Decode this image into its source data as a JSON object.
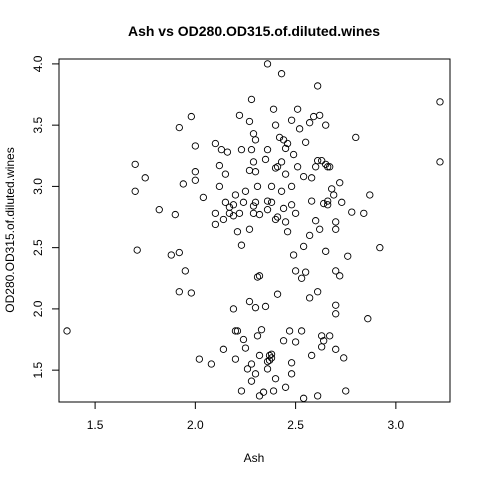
{
  "chart_data": {
    "type": "scatter",
    "title": "Ash vs OD280.OD315.of.diluted.wines",
    "xlabel": "Ash",
    "ylabel": "OD280.OD315.of.diluted.wines",
    "xlim": [
      1.32,
      3.27
    ],
    "ylim": [
      1.24,
      4.04
    ],
    "xticks": [
      1.5,
      2.0,
      2.5,
      3.0
    ],
    "xtick_labels": [
      "1.5",
      "2.0",
      "2.5",
      "3.0"
    ],
    "yticks": [
      1.5,
      2.0,
      2.5,
      3.0,
      3.5,
      4.0
    ],
    "ytick_labels": [
      "1.5",
      "2.0",
      "2.5",
      "3.0",
      "3.5",
      "4.0"
    ],
    "grid": false,
    "marker": "open-circle",
    "points": [
      [
        1.36,
        1.82
      ],
      [
        1.7,
        3.18
      ],
      [
        1.7,
        2.96
      ],
      [
        1.71,
        2.48
      ],
      [
        1.75,
        3.07
      ],
      [
        1.82,
        2.81
      ],
      [
        1.88,
        2.44
      ],
      [
        1.9,
        2.77
      ],
      [
        1.92,
        3.48
      ],
      [
        1.92,
        2.14
      ],
      [
        1.92,
        2.46
      ],
      [
        1.94,
        3.02
      ],
      [
        1.95,
        2.31
      ],
      [
        1.98,
        3.57
      ],
      [
        1.98,
        2.13
      ],
      [
        2.0,
        3.33
      ],
      [
        2.0,
        3.12
      ],
      [
        2.0,
        3.05
      ],
      [
        2.02,
        1.59
      ],
      [
        2.04,
        2.91
      ],
      [
        2.08,
        1.55
      ],
      [
        2.1,
        3.35
      ],
      [
        2.1,
        2.78
      ],
      [
        2.1,
        2.69
      ],
      [
        2.12,
        3.17
      ],
      [
        2.12,
        3.0
      ],
      [
        2.13,
        3.3
      ],
      [
        2.14,
        2.73
      ],
      [
        2.14,
        1.67
      ],
      [
        2.15,
        3.1
      ],
      [
        2.15,
        2.87
      ],
      [
        2.16,
        3.28
      ],
      [
        2.17,
        2.78
      ],
      [
        2.17,
        2.83
      ],
      [
        2.19,
        2.85
      ],
      [
        2.19,
        2.76
      ],
      [
        2.19,
        2.0
      ],
      [
        2.2,
        1.82
      ],
      [
        2.2,
        1.59
      ],
      [
        2.2,
        2.93
      ],
      [
        2.21,
        1.82
      ],
      [
        2.21,
        2.63
      ],
      [
        2.22,
        2.78
      ],
      [
        2.22,
        3.58
      ],
      [
        2.23,
        3.3
      ],
      [
        2.23,
        2.52
      ],
      [
        2.23,
        1.33
      ],
      [
        2.24,
        2.87
      ],
      [
        2.24,
        1.75
      ],
      [
        2.25,
        2.96
      ],
      [
        2.25,
        1.68
      ],
      [
        2.26,
        1.51
      ],
      [
        2.27,
        3.53
      ],
      [
        2.27,
        3.13
      ],
      [
        2.27,
        2.65
      ],
      [
        2.27,
        2.06
      ],
      [
        2.28,
        3.71
      ],
      [
        2.28,
        3.3
      ],
      [
        2.28,
        1.55
      ],
      [
        2.28,
        1.41
      ],
      [
        2.29,
        3.43
      ],
      [
        2.29,
        3.2
      ],
      [
        2.29,
        2.78
      ],
      [
        2.29,
        2.84
      ],
      [
        2.3,
        3.38
      ],
      [
        2.3,
        3.12
      ],
      [
        2.3,
        2.87
      ],
      [
        2.3,
        2.01
      ],
      [
        2.3,
        1.47
      ],
      [
        2.31,
        3.0
      ],
      [
        2.31,
        2.26
      ],
      [
        2.31,
        1.78
      ],
      [
        2.32,
        2.77
      ],
      [
        2.32,
        2.27
      ],
      [
        2.32,
        1.62
      ],
      [
        2.32,
        1.29
      ],
      [
        2.33,
        1.83
      ],
      [
        2.34,
        1.32
      ],
      [
        2.35,
        3.22
      ],
      [
        2.35,
        2.02
      ],
      [
        2.36,
        4.0
      ],
      [
        2.36,
        3.3
      ],
      [
        2.36,
        2.88
      ],
      [
        2.36,
        2.81
      ],
      [
        2.36,
        1.57
      ],
      [
        2.36,
        1.51
      ],
      [
        2.37,
        1.62
      ],
      [
        2.37,
        1.58
      ],
      [
        2.38,
        3.0
      ],
      [
        2.38,
        2.87
      ],
      [
        2.38,
        1.63
      ],
      [
        2.38,
        1.6
      ],
      [
        2.39,
        3.63
      ],
      [
        2.39,
        1.33
      ],
      [
        2.4,
        3.15
      ],
      [
        2.4,
        3.5
      ],
      [
        2.4,
        2.73
      ],
      [
        2.4,
        1.43
      ],
      [
        2.41,
        2.75
      ],
      [
        2.41,
        3.16
      ],
      [
        2.41,
        2.12
      ],
      [
        2.42,
        3.4
      ],
      [
        2.43,
        3.92
      ],
      [
        2.43,
        3.2
      ],
      [
        2.43,
        2.96
      ],
      [
        2.44,
        3.38
      ],
      [
        2.44,
        2.82
      ],
      [
        2.44,
        1.74
      ],
      [
        2.45,
        3.31
      ],
      [
        2.45,
        3.1
      ],
      [
        2.45,
        2.71
      ],
      [
        2.45,
        1.36
      ],
      [
        2.46,
        3.35
      ],
      [
        2.46,
        2.63
      ],
      [
        2.47,
        1.82
      ],
      [
        2.48,
        3.54
      ],
      [
        2.48,
        3.0
      ],
      [
        2.48,
        2.85
      ],
      [
        2.48,
        1.56
      ],
      [
        2.48,
        1.47
      ],
      [
        2.49,
        3.26
      ],
      [
        2.49,
        2.44
      ],
      [
        2.5,
        2.78
      ],
      [
        2.5,
        2.31
      ],
      [
        2.5,
        1.73
      ],
      [
        2.51,
        3.63
      ],
      [
        2.51,
        3.16
      ],
      [
        2.52,
        3.47
      ],
      [
        2.53,
        2.25
      ],
      [
        2.53,
        1.82
      ],
      [
        2.54,
        3.08
      ],
      [
        2.54,
        2.51
      ],
      [
        2.54,
        1.27
      ],
      [
        2.55,
        3.36
      ],
      [
        2.55,
        2.3
      ],
      [
        2.57,
        3.52
      ],
      [
        2.57,
        2.6
      ],
      [
        2.57,
        2.09
      ],
      [
        2.58,
        3.07
      ],
      [
        2.58,
        2.88
      ],
      [
        2.58,
        1.62
      ],
      [
        2.59,
        3.57
      ],
      [
        2.6,
        3.16
      ],
      [
        2.6,
        2.72
      ],
      [
        2.61,
        3.82
      ],
      [
        2.61,
        3.21
      ],
      [
        2.61,
        2.14
      ],
      [
        2.61,
        1.29
      ],
      [
        2.62,
        3.58
      ],
      [
        2.62,
        2.65
      ],
      [
        2.63,
        3.21
      ],
      [
        2.63,
        1.78
      ],
      [
        2.63,
        1.69
      ],
      [
        2.64,
        2.86
      ],
      [
        2.64,
        1.74
      ],
      [
        2.65,
        3.5
      ],
      [
        2.65,
        3.18
      ],
      [
        2.65,
        2.47
      ],
      [
        2.66,
        2.88
      ],
      [
        2.66,
        2.85
      ],
      [
        2.66,
        3.16
      ],
      [
        2.67,
        3.16
      ],
      [
        2.67,
        1.78
      ],
      [
        2.68,
        2.98
      ],
      [
        2.69,
        2.93
      ],
      [
        2.7,
        2.71
      ],
      [
        2.7,
        2.65
      ],
      [
        2.7,
        2.31
      ],
      [
        2.7,
        2.03
      ],
      [
        2.7,
        1.96
      ],
      [
        2.7,
        1.67
      ],
      [
        2.72,
        3.03
      ],
      [
        2.72,
        2.27
      ],
      [
        2.73,
        2.87
      ],
      [
        2.74,
        1.6
      ],
      [
        2.75,
        1.33
      ],
      [
        2.76,
        2.43
      ],
      [
        2.78,
        2.79
      ],
      [
        2.8,
        3.4
      ],
      [
        2.84,
        2.78
      ],
      [
        2.86,
        1.92
      ],
      [
        2.87,
        2.93
      ],
      [
        2.92,
        2.5
      ],
      [
        3.22,
        3.69
      ],
      [
        3.22,
        3.2
      ]
    ]
  }
}
